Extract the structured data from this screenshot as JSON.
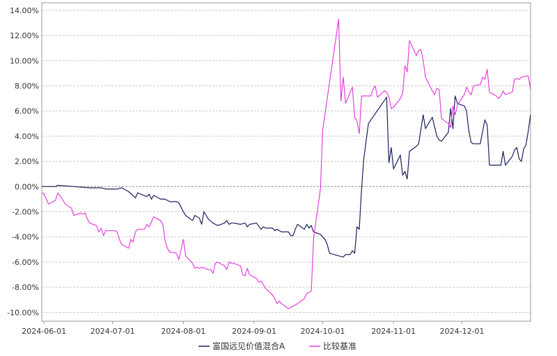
{
  "chart_data": {
    "type": "line",
    "title": "",
    "xlabel": "",
    "ylabel": "",
    "x_range": [
      "2024-05-31",
      "2024-12-31"
    ],
    "x_ticks": [
      "2024-06-01",
      "2024-07-01",
      "2024-08-01",
      "2024-09-01",
      "2024-10-01",
      "2024-11-01",
      "2024-12-01"
    ],
    "ylim": [
      -0.107,
      0.146
    ],
    "y_ticks": [
      {
        "value": 0.14,
        "label": "14.00%"
      },
      {
        "value": 0.12,
        "label": "12.00%"
      },
      {
        "value": 0.1,
        "label": "10.00%"
      },
      {
        "value": 0.08,
        "label": "8.00%"
      },
      {
        "value": 0.06,
        "label": "6.00%"
      },
      {
        "value": 0.04,
        "label": "4.00%"
      },
      {
        "value": 0.02,
        "label": "2.00%"
      },
      {
        "value": 0.0,
        "label": "0.00%"
      },
      {
        "value": -0.02,
        "label": "-2.00%"
      },
      {
        "value": -0.04,
        "label": "-4.00%"
      },
      {
        "value": -0.06,
        "label": "-6.00%"
      },
      {
        "value": -0.08,
        "label": "-8.00%"
      },
      {
        "value": -0.1,
        "label": "-10.00%"
      }
    ],
    "grid": "horizontal dashed",
    "legend": "bottom",
    "series": [
      {
        "name": "富国远见价值混合A",
        "color": "#1a1f5c",
        "points": [
          [
            "2024-05-31",
            0.0
          ],
          [
            "2024-06-06",
            0.0
          ],
          [
            "2024-06-07",
            0.001
          ],
          [
            "2024-06-14",
            0.0
          ],
          [
            "2024-06-21",
            -0.001
          ],
          [
            "2024-06-26",
            -0.001
          ],
          [
            "2024-06-28",
            -0.002
          ],
          [
            "2024-07-03",
            -0.002
          ],
          [
            "2024-07-05",
            -0.001
          ],
          [
            "2024-07-08",
            -0.004
          ],
          [
            "2024-07-11",
            -0.009
          ],
          [
            "2024-07-12",
            -0.005
          ],
          [
            "2024-07-16",
            -0.008
          ],
          [
            "2024-07-17",
            -0.006
          ],
          [
            "2024-07-18",
            -0.01
          ],
          [
            "2024-07-19",
            -0.007
          ],
          [
            "2024-07-22",
            -0.01
          ],
          [
            "2024-07-24",
            -0.01
          ],
          [
            "2024-07-26",
            -0.012
          ],
          [
            "2024-07-29",
            -0.012
          ],
          [
            "2024-07-30",
            -0.013
          ],
          [
            "2024-08-01",
            -0.02
          ],
          [
            "2024-08-02",
            -0.023
          ],
          [
            "2024-08-05",
            -0.027
          ],
          [
            "2024-08-06",
            -0.023
          ],
          [
            "2024-08-08",
            -0.025
          ],
          [
            "2024-08-09",
            -0.03
          ],
          [
            "2024-08-10",
            -0.02
          ],
          [
            "2024-08-12",
            -0.026
          ],
          [
            "2024-08-14",
            -0.029
          ],
          [
            "2024-08-16",
            -0.031
          ],
          [
            "2024-08-19",
            -0.029
          ],
          [
            "2024-08-20",
            -0.027
          ],
          [
            "2024-08-21",
            -0.03
          ],
          [
            "2024-08-22",
            -0.029
          ],
          [
            "2024-08-23",
            -0.029
          ],
          [
            "2024-08-26",
            -0.03
          ],
          [
            "2024-08-28",
            -0.029
          ],
          [
            "2024-08-29",
            -0.032
          ],
          [
            "2024-08-30",
            -0.03
          ],
          [
            "2024-09-02",
            -0.029
          ],
          [
            "2024-09-04",
            -0.034
          ],
          [
            "2024-09-05",
            -0.032
          ],
          [
            "2024-09-06",
            -0.033
          ],
          [
            "2024-09-09",
            -0.033
          ],
          [
            "2024-09-10",
            -0.035
          ],
          [
            "2024-09-11",
            -0.034
          ],
          [
            "2024-09-12",
            -0.035
          ],
          [
            "2024-09-13",
            -0.036
          ],
          [
            "2024-09-16",
            -0.036
          ],
          [
            "2024-09-17",
            -0.039
          ],
          [
            "2024-09-18",
            -0.039
          ],
          [
            "2024-09-19",
            -0.034
          ],
          [
            "2024-09-20",
            -0.03
          ],
          [
            "2024-09-23",
            -0.034
          ],
          [
            "2024-09-24",
            -0.03
          ],
          [
            "2024-09-25",
            -0.033
          ],
          [
            "2024-09-26",
            -0.031
          ],
          [
            "2024-09-27",
            -0.036
          ],
          [
            "2024-09-30",
            -0.038
          ],
          [
            "2024-10-01",
            -0.04
          ],
          [
            "2024-10-02",
            -0.042
          ],
          [
            "2024-10-03",
            -0.046
          ],
          [
            "2024-10-04",
            -0.053
          ],
          [
            "2024-10-08",
            -0.055
          ],
          [
            "2024-10-10",
            -0.056
          ],
          [
            "2024-10-11",
            -0.054
          ],
          [
            "2024-10-13",
            -0.054
          ],
          [
            "2024-10-14",
            -0.051
          ],
          [
            "2024-10-15",
            -0.053
          ],
          [
            "2024-10-16",
            -0.032
          ],
          [
            "2024-10-17",
            -0.034
          ],
          [
            "2024-10-18",
            -0.002
          ],
          [
            "2024-10-19",
            0.022
          ],
          [
            "2024-10-21",
            0.05
          ],
          [
            "2024-10-29",
            0.071
          ],
          [
            "2024-10-30",
            0.019
          ],
          [
            "2024-10-31",
            0.031
          ],
          [
            "2024-11-01",
            0.014
          ],
          [
            "2024-11-04",
            0.025
          ],
          [
            "2024-11-05",
            0.009
          ],
          [
            "2024-11-06",
            0.012
          ],
          [
            "2024-11-07",
            0.006
          ],
          [
            "2024-11-08",
            0.028
          ],
          [
            "2024-11-11",
            0.032
          ],
          [
            "2024-11-12",
            0.034
          ],
          [
            "2024-11-14",
            0.057
          ],
          [
            "2024-11-15",
            0.046
          ],
          [
            "2024-11-18",
            0.055
          ],
          [
            "2024-11-20",
            0.04
          ],
          [
            "2024-11-21",
            0.037
          ],
          [
            "2024-11-22",
            0.036
          ],
          [
            "2024-11-25",
            0.043
          ],
          [
            "2024-11-26",
            0.062
          ],
          [
            "2024-11-27",
            0.046
          ],
          [
            "2024-11-28",
            0.072
          ],
          [
            "2024-11-29",
            0.066
          ],
          [
            "2024-12-02",
            0.064
          ],
          [
            "2024-12-03",
            0.06
          ],
          [
            "2024-12-04",
            0.044
          ],
          [
            "2024-12-05",
            0.035
          ],
          [
            "2024-12-06",
            0.034
          ],
          [
            "2024-12-09",
            0.034
          ],
          [
            "2024-12-11",
            0.053
          ],
          [
            "2024-12-12",
            0.049
          ],
          [
            "2024-12-13",
            0.017
          ],
          [
            "2024-12-16",
            0.017
          ],
          [
            "2024-12-18",
            0.017
          ],
          [
            "2024-12-19",
            0.028
          ],
          [
            "2024-12-20",
            0.017
          ],
          [
            "2024-12-23",
            0.024
          ],
          [
            "2024-12-24",
            0.029
          ],
          [
            "2024-12-25",
            0.031
          ],
          [
            "2024-12-26",
            0.022
          ],
          [
            "2024-12-27",
            0.02
          ],
          [
            "2024-12-28",
            0.03
          ],
          [
            "2024-12-29",
            0.033
          ],
          [
            "2024-12-30",
            0.044
          ],
          [
            "2024-12-31",
            0.057
          ]
        ]
      },
      {
        "name": "比较基准",
        "color": "#e43fe0",
        "points": [
          [
            "2024-05-31",
            -0.005
          ],
          [
            "2024-06-01",
            -0.006
          ],
          [
            "2024-06-03",
            -0.014
          ],
          [
            "2024-06-06",
            -0.011
          ],
          [
            "2024-06-07",
            -0.005
          ],
          [
            "2024-06-09",
            -0.01
          ],
          [
            "2024-06-10",
            -0.013
          ],
          [
            "2024-06-11",
            -0.015
          ],
          [
            "2024-06-13",
            -0.017
          ],
          [
            "2024-06-14",
            -0.023
          ],
          [
            "2024-06-17",
            -0.021
          ],
          [
            "2024-06-18",
            -0.022
          ],
          [
            "2024-06-19",
            -0.021
          ],
          [
            "2024-06-20",
            -0.026
          ],
          [
            "2024-06-21",
            -0.029
          ],
          [
            "2024-06-24",
            -0.031
          ],
          [
            "2024-06-25",
            -0.036
          ],
          [
            "2024-06-26",
            -0.033
          ],
          [
            "2024-06-27",
            -0.039
          ],
          [
            "2024-06-28",
            -0.035
          ],
          [
            "2024-07-02",
            -0.035
          ],
          [
            "2024-07-03",
            -0.036
          ],
          [
            "2024-07-04",
            -0.042
          ],
          [
            "2024-07-05",
            -0.046
          ],
          [
            "2024-07-08",
            -0.049
          ],
          [
            "2024-07-09",
            -0.042
          ],
          [
            "2024-07-10",
            -0.044
          ],
          [
            "2024-07-11",
            -0.036
          ],
          [
            "2024-07-12",
            -0.034
          ],
          [
            "2024-07-15",
            -0.034
          ],
          [
            "2024-07-16",
            -0.03
          ],
          [
            "2024-07-17",
            -0.032
          ],
          [
            "2024-07-18",
            -0.028
          ],
          [
            "2024-07-19",
            -0.024
          ],
          [
            "2024-07-22",
            -0.027
          ],
          [
            "2024-07-23",
            -0.03
          ],
          [
            "2024-07-24",
            -0.043
          ],
          [
            "2024-07-25",
            -0.049
          ],
          [
            "2024-07-26",
            -0.052
          ],
          [
            "2024-07-29",
            -0.053
          ],
          [
            "2024-07-30",
            -0.058
          ],
          [
            "2024-08-01",
            -0.042
          ],
          [
            "2024-08-02",
            -0.055
          ],
          [
            "2024-08-05",
            -0.061
          ],
          [
            "2024-08-06",
            -0.065
          ],
          [
            "2024-08-07",
            -0.064
          ],
          [
            "2024-08-08",
            -0.065
          ],
          [
            "2024-08-09",
            -0.064
          ],
          [
            "2024-08-12",
            -0.066
          ],
          [
            "2024-08-13",
            -0.066
          ],
          [
            "2024-08-14",
            -0.069
          ],
          [
            "2024-08-15",
            -0.061
          ],
          [
            "2024-08-16",
            -0.06
          ],
          [
            "2024-08-19",
            -0.063
          ],
          [
            "2024-08-20",
            -0.066
          ],
          [
            "2024-08-21",
            -0.06
          ],
          [
            "2024-08-22",
            -0.061
          ],
          [
            "2024-08-23",
            -0.061
          ],
          [
            "2024-08-26",
            -0.063
          ],
          [
            "2024-08-27",
            -0.07
          ],
          [
            "2024-08-28",
            -0.071
          ],
          [
            "2024-08-29",
            -0.065
          ],
          [
            "2024-08-30",
            -0.07
          ],
          [
            "2024-09-02",
            -0.073
          ],
          [
            "2024-09-03",
            -0.076
          ],
          [
            "2024-09-04",
            -0.075
          ],
          [
            "2024-09-05",
            -0.078
          ],
          [
            "2024-09-06",
            -0.081
          ],
          [
            "2024-09-09",
            -0.086
          ],
          [
            "2024-09-10",
            -0.089
          ],
          [
            "2024-09-11",
            -0.093
          ],
          [
            "2024-09-12",
            -0.091
          ],
          [
            "2024-09-13",
            -0.093
          ],
          [
            "2024-09-16",
            -0.097
          ],
          [
            "2024-09-18",
            -0.095
          ],
          [
            "2024-09-20",
            -0.093
          ],
          [
            "2024-09-23",
            -0.089
          ],
          [
            "2024-09-24",
            -0.085
          ],
          [
            "2024-09-25",
            -0.084
          ],
          [
            "2024-09-26",
            -0.083
          ],
          [
            "2024-09-27",
            -0.041
          ],
          [
            "2024-09-30",
            -0.002
          ],
          [
            "2024-10-01",
            0.045
          ],
          [
            "2024-10-08",
            0.133
          ],
          [
            "2024-10-09",
            0.068
          ],
          [
            "2024-10-10",
            0.087
          ],
          [
            "2024-10-11",
            0.066
          ],
          [
            "2024-10-14",
            0.079
          ],
          [
            "2024-10-15",
            0.055
          ],
          [
            "2024-10-16",
            0.052
          ],
          [
            "2024-10-17",
            0.042
          ],
          [
            "2024-10-18",
            0.072
          ],
          [
            "2024-10-21",
            0.072
          ],
          [
            "2024-10-22",
            0.072
          ],
          [
            "2024-10-23",
            0.077
          ],
          [
            "2024-10-24",
            0.08
          ],
          [
            "2024-10-25",
            0.071
          ],
          [
            "2024-10-28",
            0.076
          ],
          [
            "2024-10-29",
            0.075
          ],
          [
            "2024-10-30",
            0.071
          ],
          [
            "2024-10-31",
            0.062
          ],
          [
            "2024-11-01",
            0.063
          ],
          [
            "2024-11-04",
            0.07
          ],
          [
            "2024-11-05",
            0.074
          ],
          [
            "2024-11-06",
            0.096
          ],
          [
            "2024-11-07",
            0.091
          ],
          [
            "2024-11-08",
            0.116
          ],
          [
            "2024-11-11",
            0.104
          ],
          [
            "2024-11-12",
            0.108
          ],
          [
            "2024-11-13",
            0.109
          ],
          [
            "2024-11-14",
            0.1
          ],
          [
            "2024-11-15",
            0.087
          ],
          [
            "2024-11-18",
            0.076
          ],
          [
            "2024-11-19",
            0.073
          ],
          [
            "2024-11-20",
            0.078
          ],
          [
            "2024-11-21",
            0.077
          ],
          [
            "2024-11-22",
            0.054
          ],
          [
            "2024-11-25",
            0.05
          ],
          [
            "2024-11-26",
            0.047
          ],
          [
            "2024-11-27",
            0.064
          ],
          [
            "2024-11-28",
            0.057
          ],
          [
            "2024-11-29",
            0.065
          ],
          [
            "2024-12-02",
            0.073
          ],
          [
            "2024-12-03",
            0.079
          ],
          [
            "2024-12-04",
            0.075
          ],
          [
            "2024-12-05",
            0.073
          ],
          [
            "2024-12-06",
            0.08
          ],
          [
            "2024-12-09",
            0.081
          ],
          [
            "2024-12-10",
            0.087
          ],
          [
            "2024-12-11",
            0.085
          ],
          [
            "2024-12-12",
            0.093
          ],
          [
            "2024-12-13",
            0.075
          ],
          [
            "2024-12-16",
            0.072
          ],
          [
            "2024-12-17",
            0.07
          ],
          [
            "2024-12-18",
            0.072
          ],
          [
            "2024-12-19",
            0.076
          ],
          [
            "2024-12-20",
            0.073
          ],
          [
            "2024-12-23",
            0.075
          ],
          [
            "2024-12-24",
            0.085
          ],
          [
            "2024-12-25",
            0.086
          ],
          [
            "2024-12-26",
            0.085
          ],
          [
            "2024-12-27",
            0.087
          ],
          [
            "2024-12-30",
            0.088
          ],
          [
            "2024-12-31",
            0.077
          ]
        ]
      }
    ]
  }
}
